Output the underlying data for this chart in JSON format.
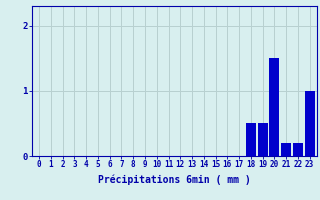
{
  "values": [
    0,
    0,
    0,
    0,
    0,
    0,
    0,
    0,
    0,
    0,
    0,
    0,
    0,
    0,
    0,
    0,
    0,
    0,
    0.5,
    0.5,
    1.5,
    0.2,
    0.2,
    1.0
  ],
  "bar_color": "#0000cc",
  "background_color": "#d8efef",
  "grid_color": "#b8d0d0",
  "axis_color": "#0000aa",
  "text_color": "#0000aa",
  "xlabel": "Précipitations 6min ( mm )",
  "ylim": [
    0,
    2.3
  ],
  "yticks": [
    0,
    1,
    2
  ],
  "n_bars": 24,
  "label_fontsize": 7,
  "tick_fontsize": 5.5
}
